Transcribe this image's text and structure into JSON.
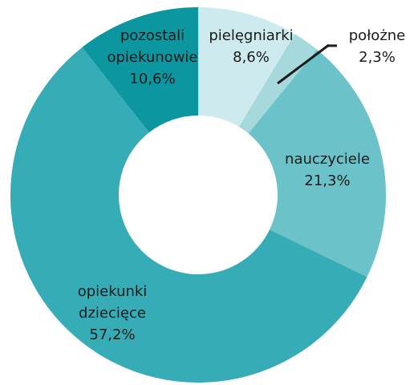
{
  "chart_data": {
    "type": "donut",
    "categories": [
      "pielęgniarki",
      "położne",
      "nauczyciele",
      "opiekunki dziecięce",
      "pozostali opiekunowie"
    ],
    "values": [
      8.6,
      2.3,
      21.3,
      57.2,
      10.6
    ],
    "value_labels": [
      "8,6%",
      "2,3%",
      "21,3%",
      "57,2%",
      "10,6%"
    ],
    "colors": [
      "#cdebee",
      "#a6d9dc",
      "#6bc3c9",
      "#36adb6",
      "#0b96a0"
    ]
  }
}
